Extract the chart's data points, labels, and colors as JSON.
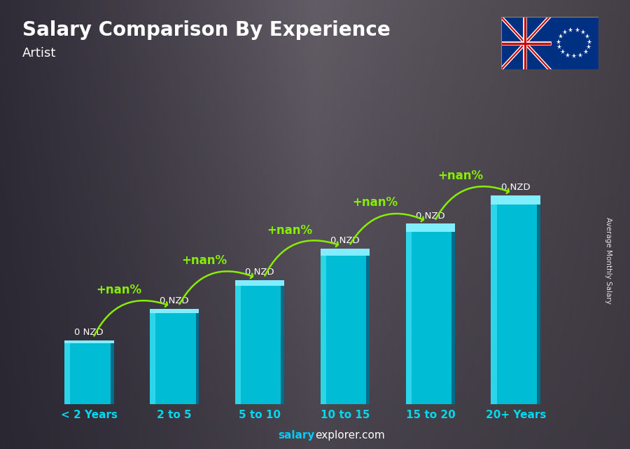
{
  "title": "Salary Comparison By Experience",
  "subtitle": "Artist",
  "categories": [
    "< 2 Years",
    "2 to 5",
    "5 to 10",
    "10 to 15",
    "15 to 20",
    "20+ Years"
  ],
  "bar_labels": [
    "0 NZD",
    "0 NZD",
    "0 NZD",
    "0 NZD",
    "0 NZD",
    "0 NZD"
  ],
  "increase_labels": [
    "+nan%",
    "+nan%",
    "+nan%",
    "+nan%",
    "+nan%"
  ],
  "xlabel_color": "#00d8f0",
  "title_color": "#ffffff",
  "subtitle_color": "#ffffff",
  "label_color": "#ffffff",
  "increase_color": "#88ee00",
  "footer_salary_color": "#00ccff",
  "footer_rest_color": "#ffffff",
  "ylabel_text": "Average Monthly Salary",
  "bar_face_color": "#00bcd4",
  "bar_highlight_color": "#40e0f0",
  "bar_side_color": "#006080",
  "bar_top_color": "#80eeff",
  "bar_heights": [
    1.8,
    2.7,
    3.5,
    4.4,
    5.1,
    5.9
  ],
  "bar_width": 0.58,
  "bg_left_color": "#2a2830",
  "bg_mid_color": "#8a8890",
  "bg_right_color": "#5a5860",
  "ylim_max": 8.0,
  "flag_colors": {
    "blue": "#003082",
    "white": "#ffffff",
    "red": "#cc0000"
  }
}
